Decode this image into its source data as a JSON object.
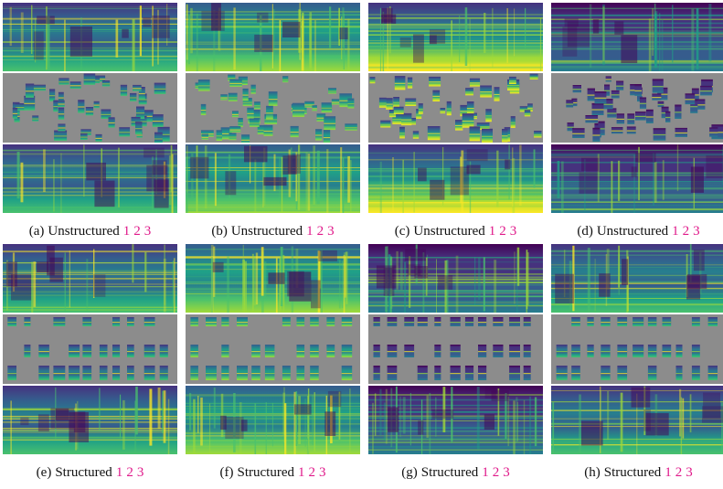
{
  "figure": {
    "panels": [
      {
        "id": "a",
        "label": "(a)",
        "type": "Unstructured",
        "links": [
          "1",
          "2",
          "3"
        ],
        "palette": "purple"
      },
      {
        "id": "b",
        "label": "(b)",
        "type": "Unstructured",
        "links": [
          "1",
          "2",
          "3"
        ],
        "palette": "green"
      },
      {
        "id": "c",
        "label": "(c)",
        "type": "Unstructured",
        "links": [
          "1",
          "2",
          "3"
        ],
        "palette": "yellow"
      },
      {
        "id": "d",
        "label": "(d)",
        "type": "Unstructured",
        "links": [
          "1",
          "2",
          "3"
        ],
        "palette": "dark"
      },
      {
        "id": "e",
        "label": "(e)",
        "type": "Structured",
        "links": [
          "1",
          "2",
          "3"
        ],
        "palette": "purple"
      },
      {
        "id": "f",
        "label": "(f)",
        "type": "Structured",
        "links": [
          "1",
          "2",
          "3"
        ],
        "palette": "green"
      },
      {
        "id": "g",
        "label": "(g)",
        "type": "Structured",
        "links": [
          "1",
          "2",
          "3"
        ],
        "palette": "dark"
      },
      {
        "id": "h",
        "label": "(h)",
        "type": "Structured",
        "links": [
          "1",
          "2",
          "3"
        ],
        "palette": "purple"
      }
    ],
    "colors": {
      "mask_gray": "#8c8c8c",
      "viridis": [
        "#440154",
        "#46327e",
        "#365c8d",
        "#277f8e",
        "#1fa187",
        "#4ac16d",
        "#a0da39",
        "#fde725"
      ],
      "link": "#e0198a"
    }
  }
}
